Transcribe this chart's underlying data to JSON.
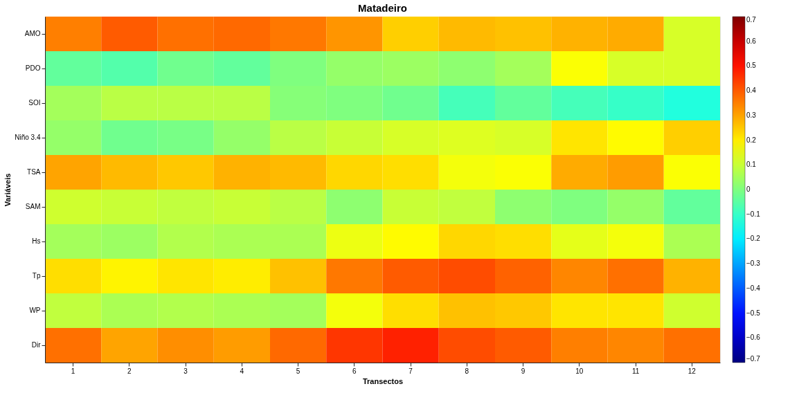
{
  "chart_data": {
    "type": "heatmap",
    "title": "Matadeiro",
    "xlabel": "Transectos",
    "ylabel": "Variáveis",
    "categories": [
      "1",
      "2",
      "3",
      "4",
      "5",
      "6",
      "7",
      "8",
      "9",
      "10",
      "11",
      "12"
    ],
    "y_categories": [
      "AMO",
      "PDO",
      "SOI",
      "Niño 3.4",
      "TSA",
      "SAM",
      "Hs",
      "Tp",
      "WP",
      "Dir"
    ],
    "cells": [
      [
        0.35,
        0.4,
        0.37,
        0.38,
        0.36,
        0.32,
        0.24,
        0.27,
        0.26,
        0.28,
        0.29,
        0.12
      ],
      [
        -0.04,
        -0.06,
        -0.02,
        -0.04,
        0.0,
        0.03,
        0.04,
        0.02,
        0.05,
        0.17,
        0.12,
        0.12
      ],
      [
        0.05,
        0.08,
        0.08,
        0.08,
        0.01,
        0.0,
        -0.02,
        -0.08,
        -0.04,
        -0.08,
        -0.1,
        -0.13
      ],
      [
        0.03,
        -0.02,
        -0.01,
        0.03,
        0.08,
        0.1,
        0.12,
        0.13,
        0.12,
        0.21,
        0.18,
        0.24
      ],
      [
        0.3,
        0.27,
        0.25,
        0.28,
        0.27,
        0.23,
        0.22,
        0.16,
        0.17,
        0.29,
        0.31,
        0.17
      ],
      [
        0.11,
        0.1,
        0.09,
        0.1,
        0.08,
        0.02,
        0.1,
        0.09,
        0.02,
        0.0,
        0.03,
        -0.04
      ],
      [
        0.05,
        0.04,
        0.07,
        0.06,
        0.06,
        0.15,
        0.18,
        0.23,
        0.22,
        0.14,
        0.16,
        0.06
      ],
      [
        0.22,
        0.19,
        0.21,
        0.2,
        0.26,
        0.36,
        0.4,
        0.42,
        0.39,
        0.34,
        0.37,
        0.28
      ],
      [
        0.09,
        0.06,
        0.07,
        0.06,
        0.05,
        0.16,
        0.22,
        0.26,
        0.25,
        0.21,
        0.21,
        0.11
      ],
      [
        0.37,
        0.3,
        0.33,
        0.31,
        0.38,
        0.45,
        0.48,
        0.42,
        0.4,
        0.35,
        0.34,
        0.37
      ]
    ],
    "clim": [
      -0.7,
      0.7
    ],
    "cticks": [
      -0.7,
      -0.6,
      -0.5,
      -0.4,
      -0.3,
      -0.2,
      -0.1,
      0,
      0.1,
      0.2,
      0.3,
      0.4,
      0.5,
      0.6,
      0.7
    ]
  }
}
